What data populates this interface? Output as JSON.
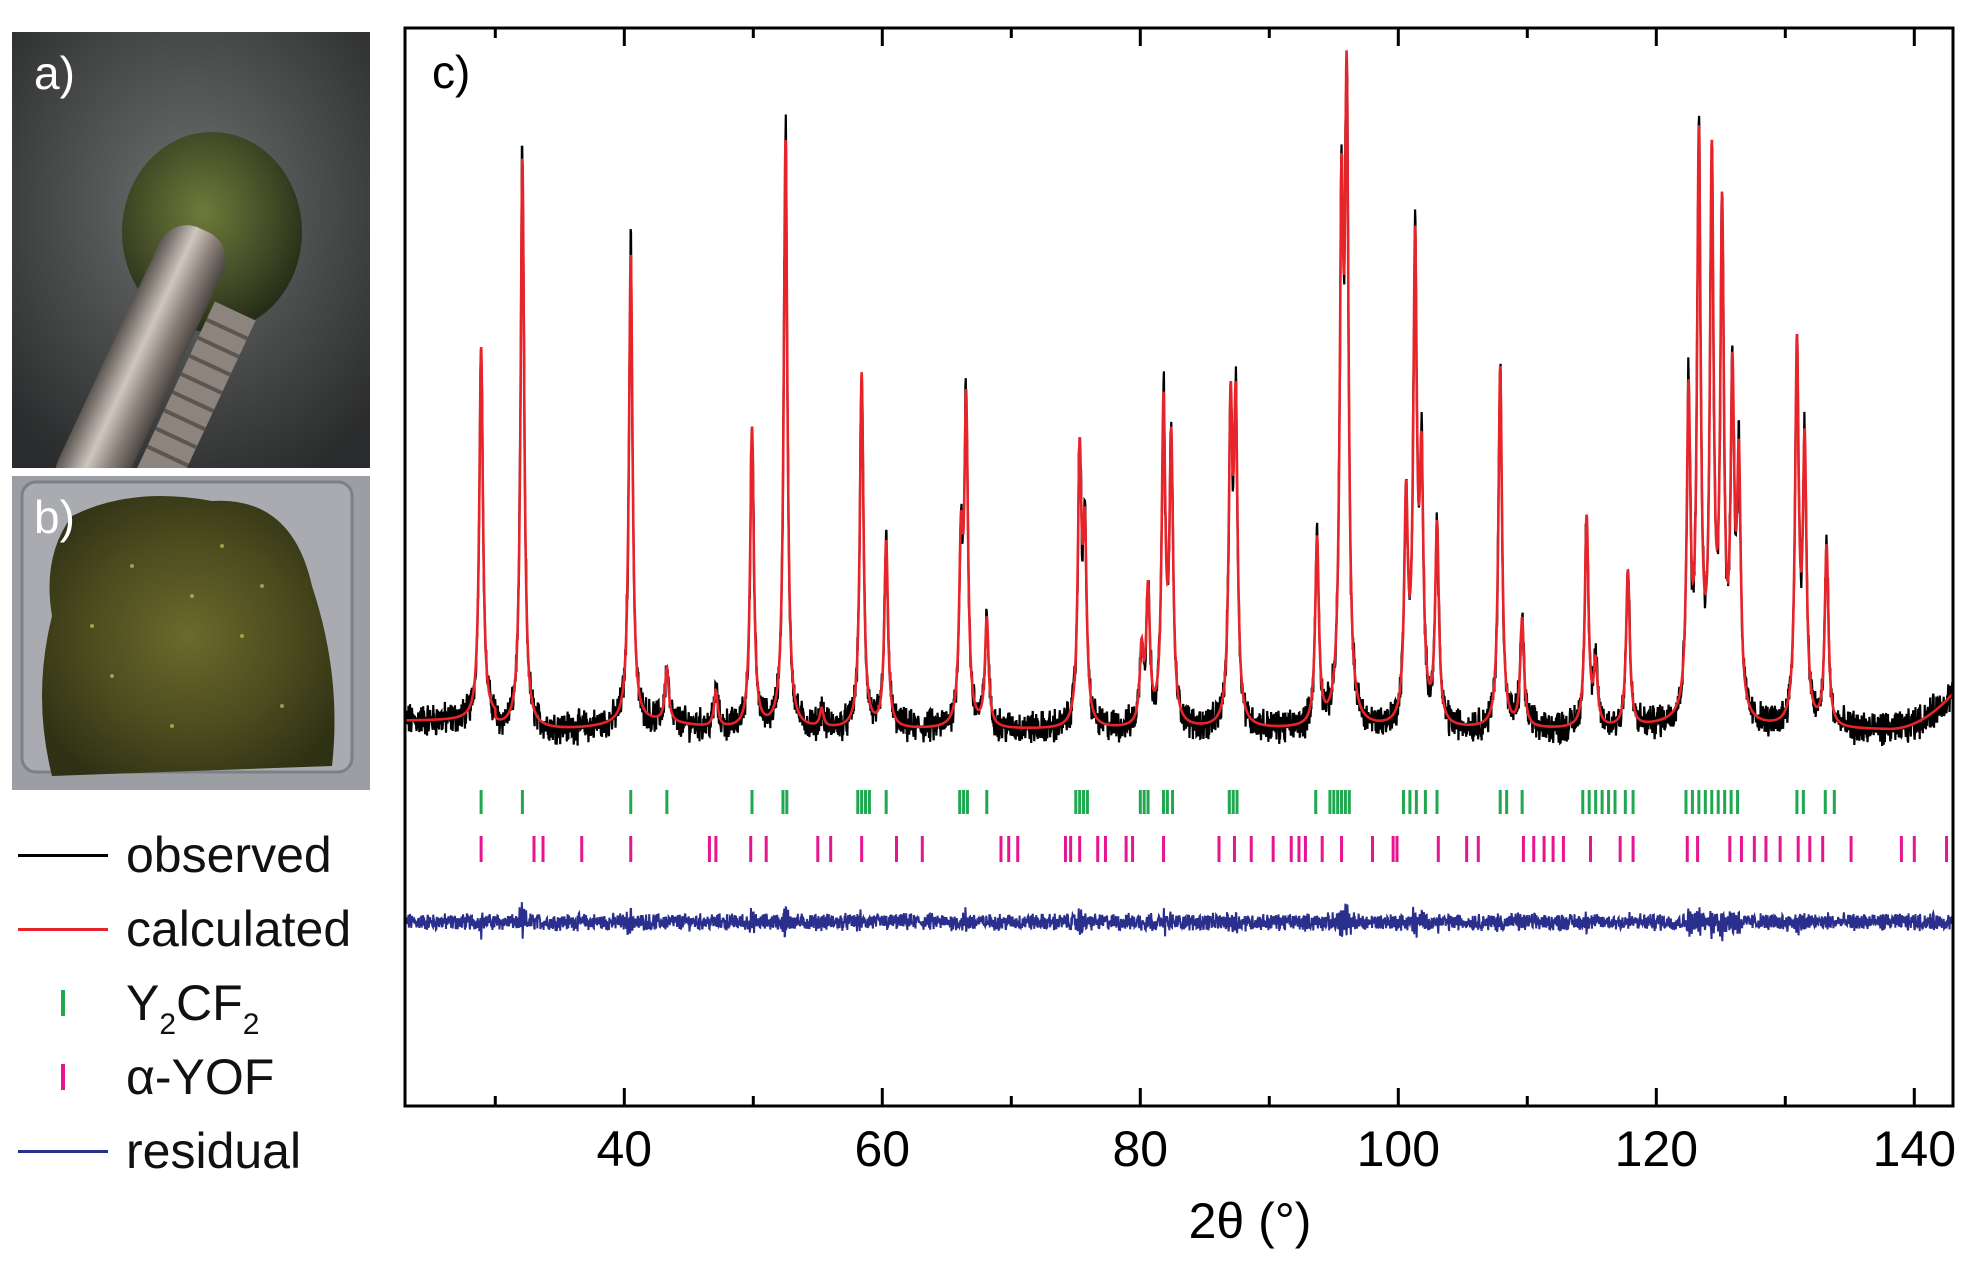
{
  "panels": {
    "a_label": "a)",
    "b_label": "b)",
    "c_label": "c)"
  },
  "legend": {
    "observed": "observed",
    "calculated": "calculated",
    "y2cf2_main": "Y",
    "y2cf2_sub1": "2",
    "y2cf2_mid": "CF",
    "y2cf2_sub2": "2",
    "ayof": "α-YOF",
    "residual": "residual"
  },
  "colors": {
    "observed": "#000000",
    "calculated": "#e8242b",
    "y2cf2": "#1fa84f",
    "ayof": "#e6158f",
    "residual": "#2a2e8c"
  },
  "chart_data": {
    "type": "line",
    "title": "",
    "xlabel": "2θ (°)",
    "ylabel": "",
    "xlim": [
      23,
      143
    ],
    "xticks": [
      40,
      60,
      80,
      100,
      120,
      140
    ],
    "xtick_labels": [
      "40",
      "60",
      "80",
      "100",
      "120",
      "140"
    ],
    "minor_xticks": [
      30,
      50,
      70,
      90,
      110,
      130
    ],
    "intensity_scale": "relative (peak heights as fraction of strongest reflection)",
    "background": 0.0,
    "peaks": [
      {
        "x": 28.9,
        "h": 0.62
      },
      {
        "x": 32.1,
        "h": 0.95
      },
      {
        "x": 40.5,
        "h": 0.78
      },
      {
        "x": 43.3,
        "h": 0.09
      },
      {
        "x": 47.1,
        "h": 0.06
      },
      {
        "x": 49.9,
        "h": 0.5
      },
      {
        "x": 52.5,
        "h": 0.98
      },
      {
        "x": 55.3,
        "h": 0.03
      },
      {
        "x": 58.4,
        "h": 0.59
      },
      {
        "x": 60.3,
        "h": 0.31
      },
      {
        "x": 66.1,
        "h": 0.28
      },
      {
        "x": 66.5,
        "h": 0.52
      },
      {
        "x": 68.1,
        "h": 0.18
      },
      {
        "x": 75.3,
        "h": 0.44
      },
      {
        "x": 75.7,
        "h": 0.3
      },
      {
        "x": 80.1,
        "h": 0.12
      },
      {
        "x": 80.6,
        "h": 0.22
      },
      {
        "x": 81.8,
        "h": 0.52
      },
      {
        "x": 82.4,
        "h": 0.46
      },
      {
        "x": 87.0,
        "h": 0.5
      },
      {
        "x": 87.4,
        "h": 0.5
      },
      {
        "x": 93.7,
        "h": 0.31
      },
      {
        "x": 95.6,
        "h": 0.8
      },
      {
        "x": 96.0,
        "h": 1.0
      },
      {
        "x": 100.6,
        "h": 0.36
      },
      {
        "x": 101.3,
        "h": 0.77
      },
      {
        "x": 101.8,
        "h": 0.4
      },
      {
        "x": 103.0,
        "h": 0.33
      },
      {
        "x": 107.9,
        "h": 0.6
      },
      {
        "x": 109.6,
        "h": 0.18
      },
      {
        "x": 114.6,
        "h": 0.35
      },
      {
        "x": 115.3,
        "h": 0.1
      },
      {
        "x": 117.8,
        "h": 0.26
      },
      {
        "x": 122.5,
        "h": 0.52
      },
      {
        "x": 123.3,
        "h": 0.94
      },
      {
        "x": 124.3,
        "h": 0.9
      },
      {
        "x": 125.1,
        "h": 0.81
      },
      {
        "x": 125.9,
        "h": 0.53
      },
      {
        "x": 126.4,
        "h": 0.4
      },
      {
        "x": 130.9,
        "h": 0.62
      },
      {
        "x": 131.5,
        "h": 0.45
      },
      {
        "x": 133.2,
        "h": 0.3
      }
    ],
    "y2cf2_reflections": [
      28.9,
      32.1,
      40.5,
      43.3,
      49.9,
      52.3,
      52.6,
      58.1,
      58.4,
      58.7,
      59.0,
      60.3,
      66.0,
      66.3,
      66.6,
      68.1,
      75.0,
      75.3,
      75.6,
      75.9,
      80.0,
      80.3,
      80.6,
      81.8,
      82.1,
      82.5,
      86.9,
      87.2,
      87.5,
      93.6,
      94.7,
      95.0,
      95.3,
      95.6,
      95.9,
      96.2,
      100.4,
      100.9,
      101.4,
      102.1,
      103.0,
      107.9,
      108.4,
      109.6,
      114.3,
      114.8,
      115.3,
      115.8,
      116.3,
      116.8,
      117.6,
      118.2,
      122.3,
      122.8,
      123.3,
      123.8,
      124.3,
      124.8,
      125.3,
      125.8,
      126.3,
      130.9,
      131.4,
      133.1,
      133.8
    ],
    "ayof_reflections": [
      28.9,
      33.0,
      33.7,
      36.7,
      40.5,
      46.6,
      47.1,
      49.8,
      51.0,
      55.0,
      56.0,
      58.4,
      61.1,
      63.1,
      69.2,
      69.8,
      70.5,
      74.2,
      74.6,
      75.3,
      76.7,
      77.3,
      78.9,
      79.4,
      81.8,
      86.1,
      87.3,
      88.6,
      90.3,
      91.7,
      92.3,
      92.8,
      94.1,
      95.6,
      98.0,
      99.6,
      99.9,
      103.1,
      105.3,
      106.2,
      109.7,
      110.5,
      111.3,
      112.0,
      112.8,
      114.9,
      117.2,
      118.2,
      122.4,
      123.2,
      125.7,
      126.6,
      127.6,
      128.5,
      129.6,
      131.0,
      131.9,
      132.9,
      135.1,
      139.0,
      140.0,
      142.5
    ],
    "series": [
      {
        "name": "observed"
      },
      {
        "name": "calculated"
      },
      {
        "name": "residual"
      }
    ]
  }
}
